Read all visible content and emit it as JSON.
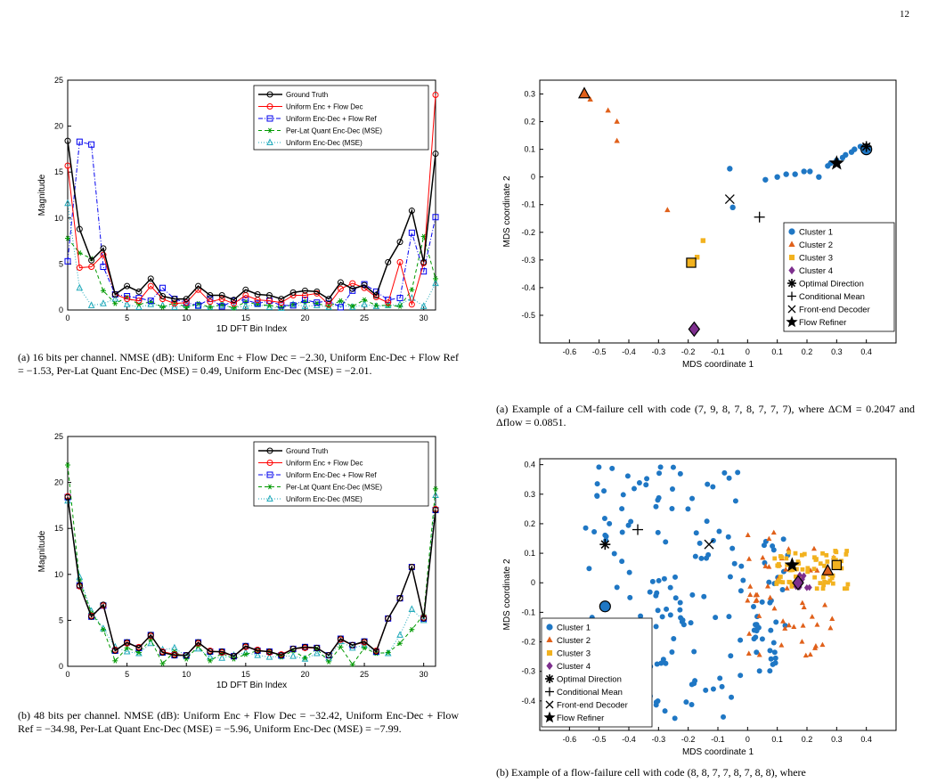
{
  "page_number": "12",
  "captions": {
    "left_a": "(a) 16 bits per channel. NMSE (dB): Uniform Enc + Flow Dec = −2.30, Uniform Enc-Dec + Flow Ref = −1.53, Per-Lat Quant Enc-Dec (MSE) = 0.49, Uniform Enc-Dec (MSE) = −2.01.",
    "left_b": "(b) 48 bits per channel. NMSE (dB): Uniform Enc + Flow Dec = −32.42, Uniform Enc-Dec + Flow Ref = −34.98, Per-Lat Quant Enc-Dec (MSE) = −5.96, Uniform Enc-Dec (MSE) = −7.99.",
    "right_a": "(a) Example of a CM-failure cell with code (7, 9, 8, 7, 8, 7, 7, 7), where ΔCM = 0.2047 and Δflow = 0.0851.",
    "right_b": "(b) Example of a flow-failure cell with code (8, 8, 7, 7, 8, 7, 8, 8), where"
  },
  "colors": {
    "ground_truth": "#000000",
    "flow_dec": "#ff0000",
    "flow_ref": "#0000ee",
    "per_lat": "#009900",
    "uniform_mse": "#22aabb",
    "cluster1": "#1f77c4",
    "cluster2": "#e0601a",
    "cluster3": "#f2b21f",
    "cluster4": "#7e2f8e"
  },
  "chart_data": [
    {
      "type": "line",
      "xlabel": "1D DFT Bin Index",
      "ylabel": "Magnitude",
      "xlim": [
        0,
        31
      ],
      "ylim": [
        0,
        25
      ],
      "xticks": [
        0,
        5,
        10,
        15,
        20,
        25,
        30
      ],
      "yticks": [
        0,
        5,
        10,
        15,
        20,
        25
      ],
      "legend_position": "top-right",
      "x": [
        0,
        1,
        2,
        3,
        4,
        5,
        6,
        7,
        8,
        9,
        10,
        11,
        12,
        13,
        14,
        15,
        16,
        17,
        18,
        19,
        20,
        21,
        22,
        23,
        24,
        25,
        26,
        27,
        28,
        29,
        30,
        31
      ],
      "series": [
        {
          "name": "Ground Truth",
          "values": [
            18.4,
            8.8,
            5.4,
            6.7,
            1.7,
            2.6,
            2.0,
            3.4,
            1.5,
            1.2,
            1.2,
            2.6,
            1.6,
            1.6,
            1.1,
            2.2,
            1.7,
            1.6,
            1.2,
            1.9,
            2.1,
            2.0,
            1.2,
            3.0,
            2.3,
            2.7,
            1.6,
            5.2,
            7.4,
            10.8,
            5.2,
            17.0
          ]
        },
        {
          "name": "Uniform Enc + Flow Dec",
          "values": [
            15.7,
            4.6,
            4.7,
            6.0,
            1.7,
            1.2,
            1.0,
            2.6,
            1.2,
            0.7,
            0.8,
            2.2,
            0.9,
            1.2,
            0.7,
            1.6,
            1.1,
            1.0,
            0.8,
            1.6,
            1.6,
            1.8,
            0.6,
            2.3,
            2.9,
            2.4,
            1.4,
            0.8,
            5.2,
            0.6,
            5.1,
            23.4
          ]
        },
        {
          "name": "Uniform Enc-Dec + Flow Ref",
          "values": [
            5.3,
            18.3,
            18.0,
            4.7,
            1.7,
            1.5,
            1.3,
            1.0,
            2.4,
            1.2,
            0.8,
            0.5,
            1.2,
            0.4,
            1.0,
            1.1,
            0.7,
            1.0,
            0.5,
            0.5,
            1.1,
            0.8,
            1.0,
            0.3,
            2.1,
            2.8,
            2.0,
            1.1,
            1.3,
            8.4,
            4.2,
            10.1
          ]
        },
        {
          "name": "Per-Lat Quant Enc-Dec (MSE)",
          "values": [
            7.8,
            6.2,
            5.6,
            2.1,
            0.7,
            1.4,
            0.6,
            0.9,
            0.3,
            0.8,
            0.3,
            0.7,
            0.3,
            0.6,
            0.2,
            0.9,
            0.6,
            0.5,
            0.3,
            0.6,
            0.9,
            0.7,
            0.4,
            1.0,
            0.4,
            1.1,
            0.5,
            0.5,
            0.4,
            2.2,
            8.0,
            3.4
          ]
        },
        {
          "name": "Uniform Enc-Dec (MSE)",
          "values": [
            11.6,
            2.4,
            0.5,
            0.7,
            1.2,
            0.6,
            0.3,
            0.6,
            0.5,
            0.3,
            0.5,
            0.4,
            0.3,
            0.5,
            0.3,
            0.4,
            0.6,
            0.3,
            0.2,
            0.6,
            0.4,
            0.5,
            0.3,
            0.6,
            0.3,
            0.6,
            0.4,
            0.5,
            0.6,
            1.3,
            0.4,
            2.9
          ]
        }
      ]
    },
    {
      "type": "line",
      "xlabel": "1D DFT Bin Index",
      "ylabel": "Magnitude",
      "xlim": [
        0,
        31
      ],
      "ylim": [
        0,
        25
      ],
      "xticks": [
        0,
        5,
        10,
        15,
        20,
        25,
        30
      ],
      "yticks": [
        0,
        5,
        10,
        15,
        20,
        25
      ],
      "legend_position": "top-right",
      "x": [
        0,
        1,
        2,
        3,
        4,
        5,
        6,
        7,
        8,
        9,
        10,
        11,
        12,
        13,
        14,
        15,
        16,
        17,
        18,
        19,
        20,
        21,
        22,
        23,
        24,
        25,
        26,
        27,
        28,
        29,
        30,
        31
      ],
      "series": [
        {
          "name": "Ground Truth",
          "values": [
            18.4,
            8.8,
            5.4,
            6.7,
            1.7,
            2.6,
            2.0,
            3.4,
            1.5,
            1.2,
            1.2,
            2.6,
            1.6,
            1.6,
            1.1,
            2.2,
            1.7,
            1.6,
            1.2,
            1.9,
            2.1,
            2.0,
            1.2,
            3.0,
            2.3,
            2.7,
            1.6,
            5.2,
            7.4,
            10.8,
            5.2,
            17.0
          ]
        },
        {
          "name": "Uniform Enc + Flow Dec",
          "values": [
            18.5,
            8.7,
            5.5,
            6.6,
            1.8,
            2.5,
            2.1,
            3.3,
            1.6,
            1.3,
            1.2,
            2.5,
            1.7,
            1.5,
            1.1,
            2.1,
            1.8,
            1.5,
            1.3,
            1.9,
            2.0,
            2.0,
            1.2,
            2.9,
            2.3,
            2.6,
            1.7,
            5.2,
            7.4,
            10.8,
            5.3,
            17.1
          ]
        },
        {
          "name": "Uniform Enc-Dec + Flow Ref",
          "values": [
            18.4,
            8.8,
            5.4,
            6.6,
            1.7,
            2.6,
            2.0,
            3.4,
            1.5,
            1.2,
            1.2,
            2.6,
            1.6,
            1.6,
            1.1,
            2.2,
            1.7,
            1.6,
            1.2,
            1.9,
            2.1,
            2.0,
            1.2,
            3.0,
            2.3,
            2.7,
            1.6,
            5.2,
            7.4,
            10.8,
            5.2,
            17.0
          ]
        },
        {
          "name": "Per-Lat Quant Enc-Dec (MSE)",
          "values": [
            21.9,
            9.3,
            5.8,
            4.0,
            0.6,
            2.0,
            1.5,
            2.9,
            0.3,
            1.6,
            0.8,
            2.2,
            0.6,
            1.4,
            0.8,
            1.3,
            1.7,
            1.6,
            1.0,
            1.7,
            0.9,
            1.9,
            0.5,
            2.1,
            0.2,
            2.0,
            1.4,
            1.5,
            2.5,
            4.0,
            5.6,
            19.3
          ]
        },
        {
          "name": "Uniform Enc-Dec (MSE)",
          "values": [
            18.0,
            9.7,
            6.0,
            4.1,
            2.1,
            1.6,
            1.4,
            2.5,
            1.8,
            2.0,
            1.1,
            1.9,
            1.0,
            0.9,
            1.2,
            1.5,
            1.2,
            1.0,
            1.1,
            1.1,
            0.8,
            1.4,
            0.9,
            2.7,
            2.0,
            2.3,
            1.5,
            1.4,
            3.4,
            6.2,
            5.0,
            18.6
          ]
        }
      ]
    },
    {
      "type": "scatter",
      "xlabel": "MDS coordinate 1",
      "ylabel": "MDS coordinate 2",
      "xlim": [
        -0.7,
        0.5
      ],
      "ylim": [
        -0.6,
        0.35
      ],
      "xticks": [
        -0.6,
        -0.5,
        -0.4,
        -0.3,
        -0.2,
        -0.1,
        0,
        0.1,
        0.2,
        0.3,
        0.4
      ],
      "yticks": [
        -0.5,
        -0.4,
        -0.3,
        -0.2,
        -0.1,
        0,
        0.1,
        0.2,
        0.3
      ],
      "legend_position": "bottom-right",
      "legend": [
        "Cluster 1",
        "Cluster 2",
        "Cluster 3",
        "Cluster 4",
        "Optimal Direction",
        "Conditional Mean",
        "Front-end Decoder",
        "Flow Refiner"
      ],
      "clusters": [
        {
          "name": "Cluster 1",
          "points": [
            [
              -0.06,
              0.03
            ],
            [
              -0.05,
              -0.11
            ],
            [
              0.06,
              -0.01
            ],
            [
              0.1,
              0.0
            ],
            [
              0.13,
              0.01
            ],
            [
              0.16,
              0.01
            ],
            [
              0.19,
              0.02
            ],
            [
              0.21,
              0.02
            ],
            [
              0.24,
              0.0
            ],
            [
              0.27,
              0.04
            ],
            [
              0.3,
              0.06
            ],
            [
              0.33,
              0.08
            ],
            [
              0.36,
              0.1
            ],
            [
              0.38,
              0.11
            ],
            [
              0.35,
              0.09
            ],
            [
              0.32,
              0.07
            ],
            [
              0.28,
              0.05
            ]
          ],
          "center": [
            0.4,
            0.1
          ]
        },
        {
          "name": "Cluster 2",
          "points": [
            [
              -0.53,
              0.28
            ],
            [
              -0.47,
              0.24
            ],
            [
              -0.44,
              0.2
            ],
            [
              -0.44,
              0.13
            ],
            [
              -0.27,
              -0.12
            ]
          ],
          "center": [
            -0.55,
            0.3
          ]
        },
        {
          "name": "Cluster 3",
          "points": [
            [
              -0.17,
              -0.29
            ],
            [
              -0.15,
              -0.23
            ]
          ],
          "center": [
            -0.19,
            -0.31
          ]
        },
        {
          "name": "Cluster 4",
          "points": [],
          "center": [
            -0.18,
            -0.55
          ]
        }
      ],
      "markers": {
        "optimal_direction": [
          0.4,
          0.11
        ],
        "conditional_mean": [
          0.04,
          -0.145
        ],
        "front_end_decoder": [
          -0.06,
          -0.08
        ],
        "flow_refiner": [
          0.3,
          0.05
        ]
      }
    },
    {
      "type": "scatter",
      "xlabel": "MDS coordinate 1",
      "ylabel": "MDS coordinate 2",
      "xlim": [
        -0.7,
        0.5
      ],
      "ylim": [
        -0.5,
        0.42
      ],
      "xticks": [
        -0.6,
        -0.5,
        -0.4,
        -0.3,
        -0.2,
        -0.1,
        0,
        0.1,
        0.2,
        0.3,
        0.4
      ],
      "yticks": [
        -0.4,
        -0.3,
        -0.2,
        -0.1,
        0,
        0.1,
        0.2,
        0.3,
        0.4
      ],
      "legend_position": "bottom-left",
      "legend": [
        "Cluster 1",
        "Cluster 2",
        "Cluster 3",
        "Cluster 4",
        "Optimal Direction",
        "Conditional Mean",
        "Front-end Decoder",
        "Flow Refiner"
      ],
      "centers": {
        "cluster1": [
          -0.48,
          -0.08
        ],
        "cluster2": [
          0.27,
          0.04
        ],
        "cluster3": [
          0.3,
          0.06
        ],
        "cluster4": [
          0.17,
          0.0
        ]
      },
      "markers": {
        "optimal_direction": [
          -0.48,
          0.13
        ],
        "conditional_mean": [
          -0.37,
          0.18
        ],
        "front_end_decoder": [
          -0.13,
          0.13
        ],
        "flow_refiner": [
          0.15,
          0.06
        ]
      }
    }
  ]
}
